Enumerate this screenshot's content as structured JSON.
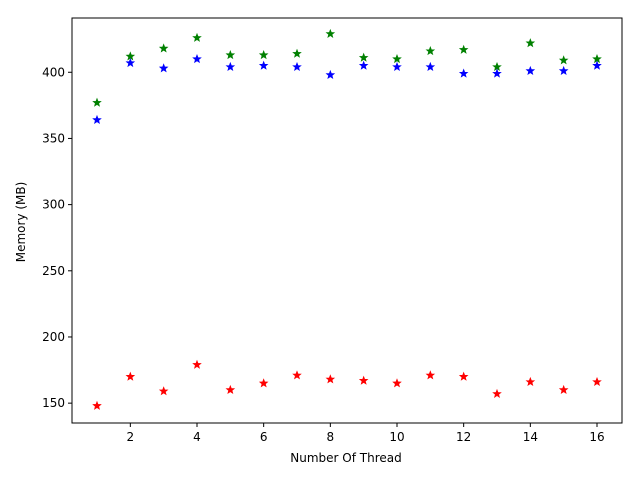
{
  "chart_data": {
    "type": "scatter",
    "title": "",
    "xlabel": "Number Of Thread",
    "ylabel": "Memory (MB)",
    "xlim": [
      0.25,
      16.75
    ],
    "ylim": [
      135,
      441
    ],
    "xticks": [
      2,
      4,
      6,
      8,
      10,
      12,
      14,
      16
    ],
    "yticks": [
      150,
      200,
      250,
      300,
      350,
      400
    ],
    "marker": "star",
    "grid": false,
    "legend": "none",
    "x": [
      1,
      2,
      3,
      4,
      5,
      6,
      7,
      8,
      9,
      10,
      11,
      12,
      13,
      14,
      15,
      16
    ],
    "series": [
      {
        "color": "#008000",
        "values": [
          377,
          412,
          418,
          426,
          413,
          413,
          414,
          429,
          411,
          410,
          416,
          417,
          404,
          422,
          409,
          410
        ]
      },
      {
        "color": "#0000ff",
        "values": [
          364,
          407,
          403,
          410,
          404,
          405,
          404,
          398,
          405,
          404,
          404,
          399,
          399,
          401,
          401,
          405
        ]
      },
      {
        "color": "#ff0000",
        "values": [
          148,
          170,
          159,
          179,
          160,
          165,
          171,
          168,
          167,
          165,
          171,
          170,
          157,
          166,
          160,
          166
        ]
      }
    ]
  }
}
